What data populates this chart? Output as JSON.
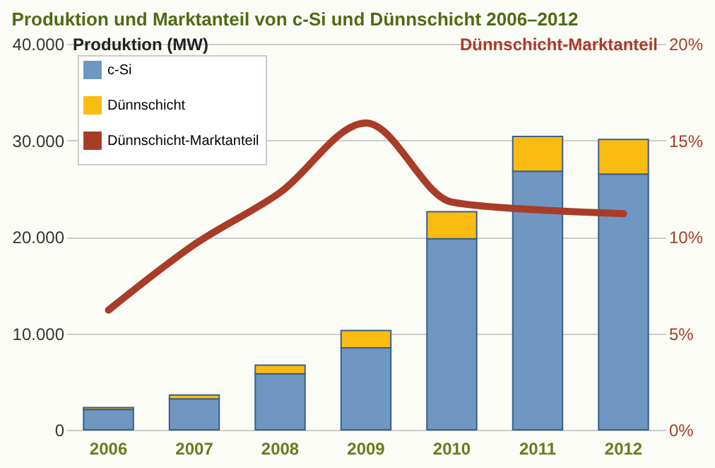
{
  "chart_data": {
    "type": "bar",
    "title": "Produktion und Marktanteil von c-Si und Dünnschicht 2006–2012",
    "ylabel": "Produktion (MW)",
    "y2label": "Dünnschicht-Marktanteil",
    "categories": [
      "2006",
      "2007",
      "2008",
      "2009",
      "2010",
      "2011",
      "2012"
    ],
    "stacked": true,
    "series": [
      {
        "name": "c-Si",
        "color": "#7096c2",
        "values": [
          2100,
          3200,
          5800,
          8500,
          19800,
          26800,
          26500
        ]
      },
      {
        "name": "Dünnschicht",
        "color": "#fbbc12",
        "values": [
          200,
          400,
          900,
          1800,
          2800,
          3600,
          3600
        ]
      },
      {
        "name": "Dünnschicht-Marktanteil",
        "color": "#a83c28",
        "type": "line",
        "axis": "y2",
        "values": [
          6.2,
          9.6,
          12.3,
          15.9,
          11.8,
          11.4,
          11.2
        ]
      }
    ],
    "ylim": [
      0,
      40000
    ],
    "yticks": [
      {
        "value": 0,
        "label": "0"
      },
      {
        "value": 10000,
        "label": "10.000"
      },
      {
        "value": 20000,
        "label": "20.000"
      },
      {
        "value": 30000,
        "label": "30.000"
      },
      {
        "value": 40000,
        "label": "40.000"
      }
    ],
    "y2lim": [
      0,
      20
    ],
    "y2ticks": [
      {
        "value": 0,
        "label": "0%"
      },
      {
        "value": 5,
        "label": "5%"
      },
      {
        "value": 10,
        "label": "10%"
      },
      {
        "value": 15,
        "label": "15%"
      },
      {
        "value": 20,
        "label": "20%"
      }
    ],
    "grid": "y",
    "legend": "top left",
    "line_style": "solid"
  }
}
